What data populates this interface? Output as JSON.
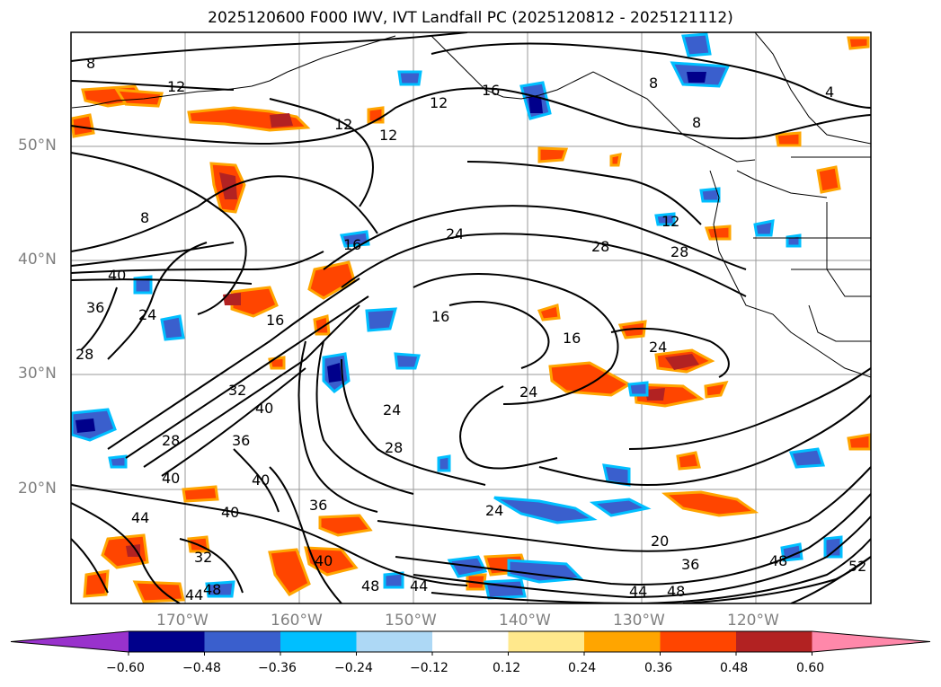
{
  "title": "2025120600 F000 IWV, IVT Landfall PC (2025120812 - 2025121112)",
  "map": {
    "lat_labels": [
      "50°N",
      "40°N",
      "30°N",
      "20°N"
    ],
    "lon_labels": [
      "170°W",
      "160°W",
      "150°W",
      "140°W",
      "130°W",
      "120°W"
    ],
    "contour_labels": [
      "8",
      "12",
      "12",
      "12",
      "16",
      "12",
      "8",
      "4",
      "8",
      "8",
      "16",
      "24",
      "12",
      "28",
      "28",
      "40",
      "36",
      "24",
      "28",
      "16",
      "16",
      "24",
      "16",
      "24",
      "24",
      "40",
      "32",
      "28",
      "36",
      "40",
      "40",
      "36",
      "28",
      "24",
      "20",
      "44",
      "40",
      "44",
      "48",
      "32",
      "40",
      "48",
      "44",
      "48",
      "44",
      "48",
      "52",
      "36"
    ]
  },
  "colorbar": {
    "ticks": [
      "−0.60",
      "−0.48",
      "−0.36",
      "−0.24",
      "−0.12",
      "0.12",
      "0.24",
      "0.36",
      "0.48",
      "0.60"
    ],
    "colors": [
      "#9932cc",
      "#00008b",
      "#3a5fcd",
      "#00bfff",
      "#add8f5",
      "#ffffff",
      "#ffe88c",
      "#ffa500",
      "#ff4500",
      "#b22222",
      "#ff88aa"
    ]
  }
}
